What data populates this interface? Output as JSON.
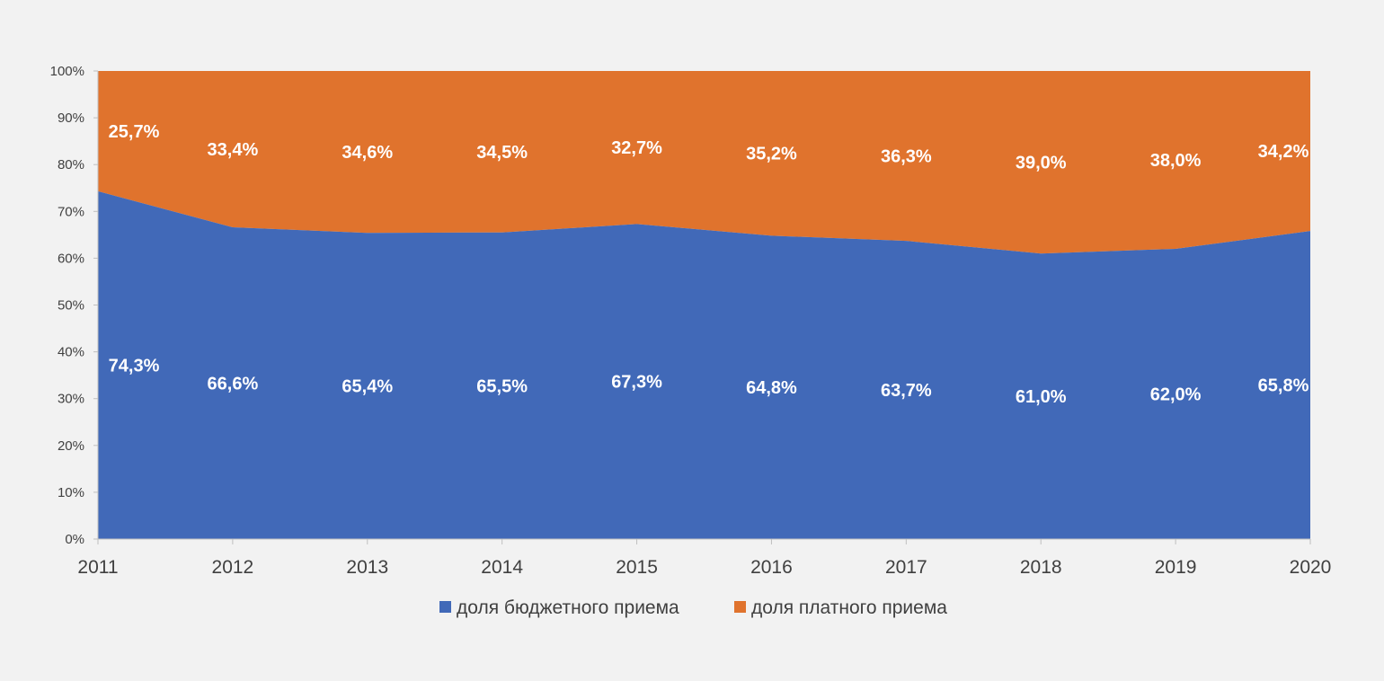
{
  "chart_data": {
    "type": "area",
    "stacked": true,
    "x": [
      "2011",
      "2012",
      "2013",
      "2014",
      "2015",
      "2016",
      "2017",
      "2018",
      "2019",
      "2020"
    ],
    "ylim": [
      0,
      100
    ],
    "yticks": [
      "0%",
      "10%",
      "20%",
      "30%",
      "40%",
      "50%",
      "60%",
      "70%",
      "80%",
      "90%",
      "100%"
    ],
    "grid": false,
    "legend_position": "bottom",
    "series": [
      {
        "name": "доля бюджетного приема",
        "color": "#4169b8",
        "values": [
          74.3,
          66.6,
          65.4,
          65.5,
          67.3,
          64.8,
          63.7,
          61.0,
          62.0,
          65.8
        ],
        "labels": [
          "74,3%",
          "66,6%",
          "65,4%",
          "65,5%",
          "67,3%",
          "64,8%",
          "63,7%",
          "61,0%",
          "62,0%",
          "65,8%"
        ]
      },
      {
        "name": "доля платного приема",
        "color": "#e0732d",
        "values": [
          25.7,
          33.4,
          34.6,
          34.5,
          32.7,
          35.2,
          36.3,
          39.0,
          38.0,
          34.2
        ],
        "labels": [
          "25,7%",
          "33,4%",
          "34,6%",
          "34,5%",
          "32,7%",
          "35,2%",
          "36,3%",
          "39,0%",
          "38,0%",
          "34,2%"
        ]
      }
    ]
  }
}
